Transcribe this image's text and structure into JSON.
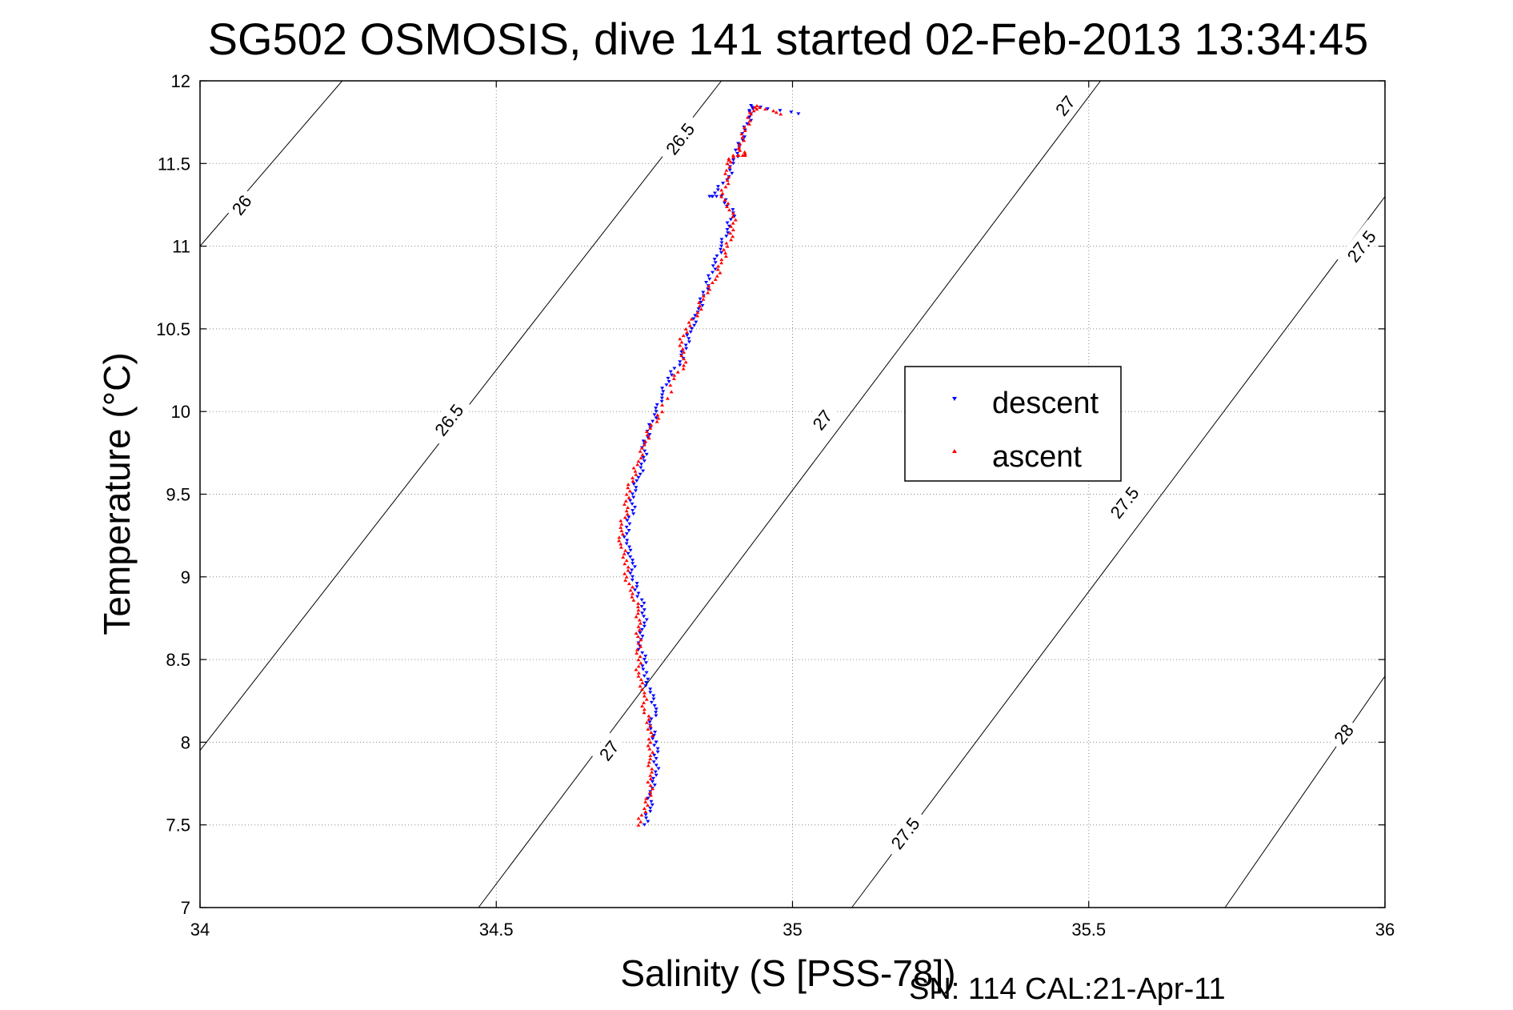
{
  "chart_data": {
    "type": "scatter",
    "title": "SG502 OSMOSIS, dive 141 started 02-Feb-2013 13:34:45",
    "xlabel": "Salinity (S [PSS-78])",
    "ylabel": "Temperature (°C)",
    "footer": "SN: 114  CAL:21-Apr-11",
    "xlim": [
      34,
      36
    ],
    "ylim": [
      7,
      12
    ],
    "xticks": [
      "34",
      "34.5",
      "35",
      "35.5",
      "36"
    ],
    "yticks": [
      "7",
      "7.5",
      "8",
      "8.5",
      "9",
      "9.5",
      "10",
      "10.5",
      "11",
      "11.5",
      "12"
    ],
    "grid": true,
    "legend_position": "center-right",
    "density_contours": [
      {
        "label": "26",
        "points": [
          [
            34.0,
            11.0
          ],
          [
            34.24,
            12.0
          ]
        ]
      },
      {
        "label": "26.5",
        "points": [
          [
            34.0,
            7.95
          ],
          [
            34.88,
            12.0
          ]
        ]
      },
      {
        "label": "27",
        "points": [
          [
            34.47,
            7.0
          ],
          [
            35.52,
            12.0
          ]
        ]
      },
      {
        "label": "27.5",
        "points": [
          [
            35.1,
            7.0
          ],
          [
            36.0,
            11.3
          ]
        ]
      },
      {
        "label": "28",
        "points": [
          [
            35.73,
            7.0
          ],
          [
            36.0,
            8.4
          ]
        ]
      }
    ],
    "contour_labels": [
      {
        "text": "26",
        "x": 34.07,
        "y": 11.25
      },
      {
        "text": "26.5",
        "x": 34.42,
        "y": 9.95
      },
      {
        "text": "26.5",
        "x": 34.81,
        "y": 11.65
      },
      {
        "text": "27",
        "x": 34.69,
        "y": 7.95
      },
      {
        "text": "27",
        "x": 35.05,
        "y": 9.95
      },
      {
        "text": "27",
        "x": 35.46,
        "y": 11.85
      },
      {
        "text": "27.5",
        "x": 35.19,
        "y": 7.45
      },
      {
        "text": "27.5",
        "x": 35.56,
        "y": 9.45
      },
      {
        "text": "27.5",
        "x": 35.96,
        "y": 11.0
      },
      {
        "text": "28",
        "x": 35.93,
        "y": 8.05
      }
    ],
    "series": [
      {
        "name": "descent",
        "color": "#0000ff",
        "points": [
          [
            34.75,
            7.5
          ],
          [
            34.76,
            7.6
          ],
          [
            34.76,
            7.7
          ],
          [
            34.77,
            7.8
          ],
          [
            34.77,
            7.9
          ],
          [
            34.77,
            8.0
          ],
          [
            34.76,
            8.1
          ],
          [
            34.77,
            8.2
          ],
          [
            34.76,
            8.3
          ],
          [
            34.75,
            8.4
          ],
          [
            34.75,
            8.5
          ],
          [
            34.74,
            8.6
          ],
          [
            34.75,
            8.7
          ],
          [
            34.75,
            8.8
          ],
          [
            34.74,
            8.9
          ],
          [
            34.73,
            9.0
          ],
          [
            34.73,
            9.1
          ],
          [
            34.72,
            9.2
          ],
          [
            34.72,
            9.3
          ],
          [
            34.73,
            9.4
          ],
          [
            34.73,
            9.5
          ],
          [
            34.74,
            9.6
          ],
          [
            34.75,
            9.7
          ],
          [
            34.75,
            9.8
          ],
          [
            34.76,
            9.9
          ],
          [
            34.77,
            10.0
          ],
          [
            34.78,
            10.1
          ],
          [
            34.79,
            10.2
          ],
          [
            34.81,
            10.3
          ],
          [
            34.82,
            10.4
          ],
          [
            34.83,
            10.5
          ],
          [
            34.84,
            10.6
          ],
          [
            34.85,
            10.7
          ],
          [
            34.86,
            10.8
          ],
          [
            34.87,
            10.9
          ],
          [
            34.88,
            11.0
          ],
          [
            34.89,
            11.1
          ],
          [
            34.9,
            11.2
          ],
          [
            34.88,
            11.3
          ],
          [
            34.86,
            11.3
          ],
          [
            34.89,
            11.4
          ],
          [
            34.9,
            11.5
          ],
          [
            34.91,
            11.6
          ],
          [
            34.92,
            11.7
          ],
          [
            34.93,
            11.8
          ],
          [
            34.93,
            11.85
          ],
          [
            35.01,
            11.8
          ]
        ]
      },
      {
        "name": "ascent",
        "color": "#ff0000",
        "points": [
          [
            34.74,
            7.5
          ],
          [
            34.75,
            7.6
          ],
          [
            34.76,
            7.7
          ],
          [
            34.76,
            7.8
          ],
          [
            34.76,
            7.9
          ],
          [
            34.76,
            8.0
          ],
          [
            34.76,
            8.1
          ],
          [
            34.75,
            8.2
          ],
          [
            34.75,
            8.3
          ],
          [
            34.74,
            8.4
          ],
          [
            34.74,
            8.5
          ],
          [
            34.74,
            8.6
          ],
          [
            34.74,
            8.7
          ],
          [
            34.74,
            8.8
          ],
          [
            34.73,
            8.9
          ],
          [
            34.72,
            9.0
          ],
          [
            34.72,
            9.1
          ],
          [
            34.71,
            9.2
          ],
          [
            34.71,
            9.3
          ],
          [
            34.72,
            9.4
          ],
          [
            34.72,
            9.5
          ],
          [
            34.73,
            9.6
          ],
          [
            34.74,
            9.7
          ],
          [
            34.75,
            9.8
          ],
          [
            34.76,
            9.9
          ],
          [
            34.78,
            10.0
          ],
          [
            34.8,
            10.2
          ],
          [
            34.82,
            10.3
          ],
          [
            34.81,
            10.4
          ],
          [
            34.82,
            10.5
          ],
          [
            34.84,
            10.6
          ],
          [
            34.85,
            10.7
          ],
          [
            34.87,
            10.8
          ],
          [
            34.88,
            10.9
          ],
          [
            34.89,
            11.0
          ],
          [
            34.9,
            11.1
          ],
          [
            34.9,
            11.2
          ],
          [
            34.88,
            11.3
          ],
          [
            34.89,
            11.4
          ],
          [
            34.89,
            11.5
          ],
          [
            34.9,
            11.55
          ],
          [
            34.92,
            11.55
          ],
          [
            34.91,
            11.6
          ],
          [
            34.92,
            11.7
          ],
          [
            34.93,
            11.8
          ],
          [
            34.94,
            11.85
          ],
          [
            34.98,
            11.8
          ]
        ]
      }
    ]
  }
}
